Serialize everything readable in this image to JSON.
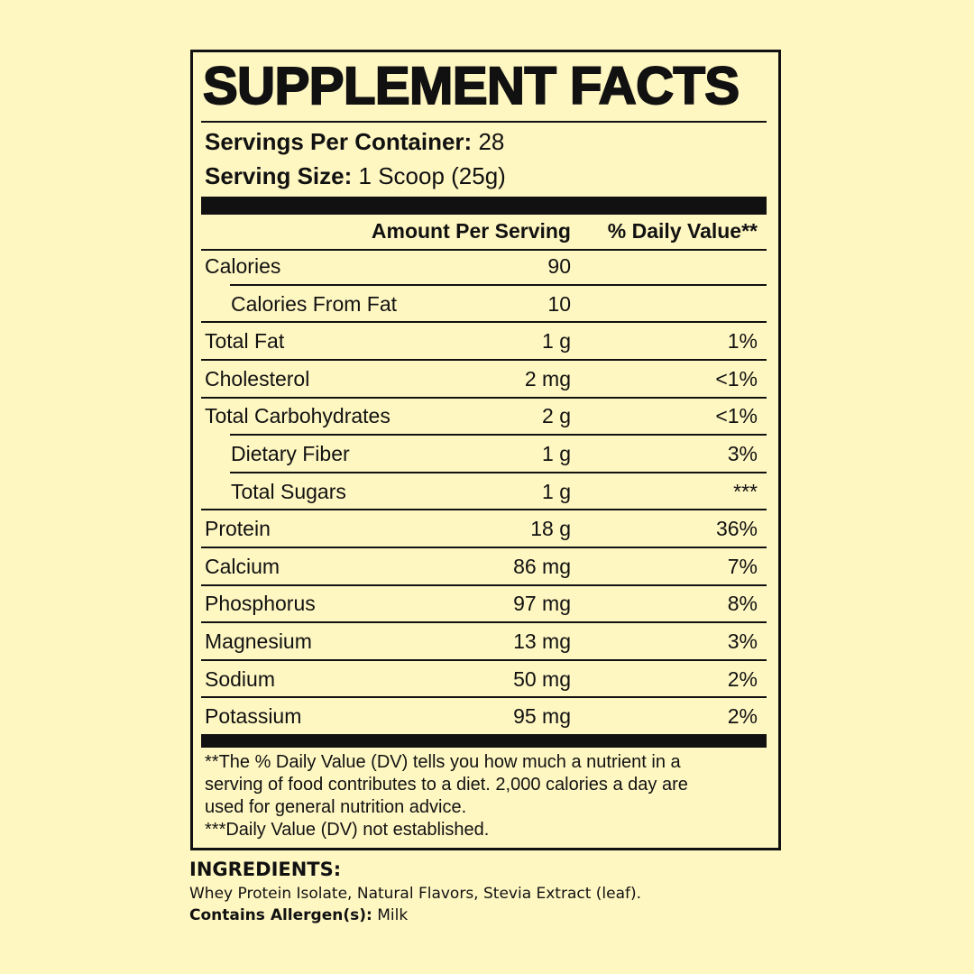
{
  "label": {
    "title": "SUPPLEMENT FACTS",
    "servings_per_container": {
      "label": "Servings Per Container:",
      "value": "28"
    },
    "serving_size": {
      "label": "Serving Size:",
      "value": "1 Scoop (25g)"
    },
    "header": {
      "amount": "Amount Per Serving",
      "daily_value": "% Daily Value**"
    },
    "rows": [
      {
        "name": "Calories",
        "amount": "90"
      },
      {
        "name": "Calories From Fat",
        "amount": "10",
        "indented": true
      },
      {
        "name": "Total Fat",
        "amount": "1 g",
        "daily_value": "1%"
      },
      {
        "name": "Cholesterol",
        "amount": "2 mg",
        "daily_value": "<1%"
      },
      {
        "name": "Total Carbohydrates",
        "amount": "2 g",
        "daily_value": "<1%"
      },
      {
        "name": "Dietary Fiber",
        "amount": "1 g",
        "daily_value": "3%",
        "indented": true
      },
      {
        "name": "Total Sugars",
        "amount": "1 g",
        "daily_value": "***",
        "indented": true
      },
      {
        "name": "Protein",
        "amount": "18 g",
        "daily_value": "36%"
      },
      {
        "name": "Calcium",
        "amount": "86 mg",
        "daily_value": "7%"
      },
      {
        "name": "Phosphorus",
        "amount": "97 mg",
        "daily_value": "8%"
      },
      {
        "name": "Magnesium",
        "amount": "13 mg",
        "daily_value": "3%"
      },
      {
        "name": "Sodium",
        "amount": "50 mg",
        "daily_value": "2%"
      },
      {
        "name": "Potassium",
        "amount": "95 mg",
        "daily_value": "2%"
      }
    ],
    "footnotes": [
      "**The % Daily Value (DV) tells you how much a nutrient in a",
      "serving of food contributes to a diet. 2,000 calories a day are",
      "used for general nutrition advice.",
      "***Daily Value (DV) not established."
    ]
  },
  "ingredients": {
    "heading": "INGREDIENTS:",
    "text": "Whey Protein Isolate, Natural Flavors, Stevia Extract (leaf).",
    "allergen_label": "Contains Allergen(s):",
    "allergen_value": "Milk"
  }
}
